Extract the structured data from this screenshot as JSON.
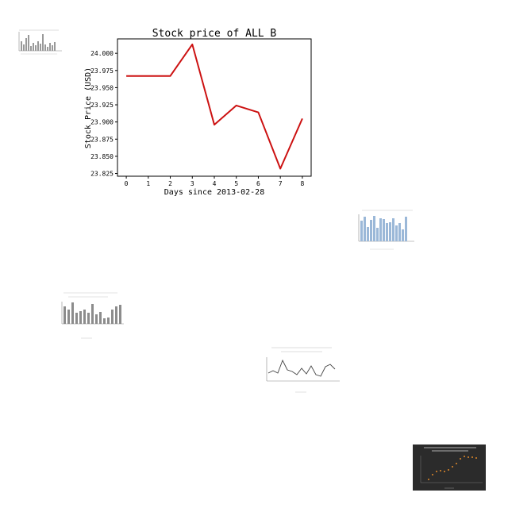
{
  "chart_data": {
    "type": "line",
    "title": "Stock price of ALL_B",
    "xlabel": "Days since 2013-02-28",
    "ylabel": "Stock Price (USD)",
    "x": [
      0,
      1,
      2,
      3,
      4,
      5,
      6,
      7,
      8
    ],
    "series": [
      {
        "values": [
          23.967,
          23.967,
          23.967,
          24.013,
          23.896,
          23.924,
          23.914,
          23.832,
          23.905
        ]
      }
    ],
    "xticks": [
      "0",
      "1",
      "2",
      "3",
      "4",
      "5",
      "6",
      "7",
      "8"
    ],
    "yticks": [
      "23.825",
      "23.850",
      "23.875",
      "23.900",
      "23.925",
      "23.950",
      "23.975",
      "24.000"
    ],
    "xlim": [
      -0.4,
      8.4
    ],
    "ylim": [
      23.821,
      24.021
    ],
    "grid": false,
    "line_color": "#cc1111"
  },
  "thumbnails": {
    "bar_gray_small_color": "#999999",
    "bar_blue_color": "#9bb8d8",
    "bar_gray_color": "#8c8c8c",
    "line_gray_color": "#444444",
    "dark_panel_color": "#2b2b2b",
    "dark_points_color": "#e08a2a"
  }
}
